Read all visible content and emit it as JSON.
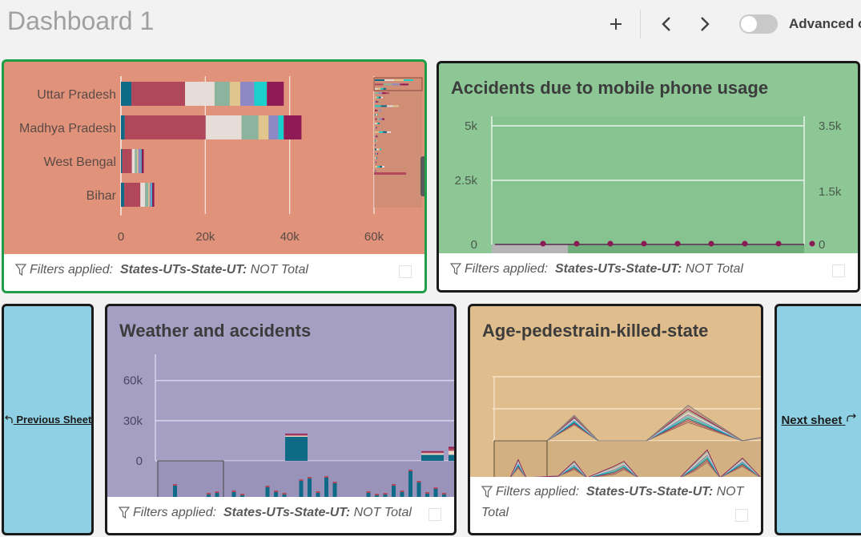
{
  "header": {
    "title": "Dashboard 1",
    "add_icon": "plus-icon",
    "prev_icon": "chevron-left-icon",
    "next_icon": "chevron-right-icon",
    "toggle_on": false,
    "advanced_label": "Advanced o"
  },
  "filter_footer": {
    "prefix": "Filters applied:",
    "field": "States-UTs-State-UT:",
    "value": "NOT Total"
  },
  "cards": {
    "states_bar": {
      "background": "#e0937a"
    },
    "mobile": {
      "title": "Accidents due to mobile phone usage",
      "background": "#8cc795"
    },
    "weather": {
      "title": "Weather and accidents",
      "background": "#a59fc4"
    },
    "age": {
      "title": "Age-pedestrain-killed-state",
      "background": "#e0bd8c"
    },
    "prev_sheet": {
      "label": "Previous Sheet",
      "icon": "return-arrow-icon"
    },
    "next_sheet": {
      "label": "Next sheet",
      "icon": "redo-arrow-icon"
    }
  },
  "chart_data": [
    {
      "type": "bar",
      "orientation": "horizontal-stacked",
      "categories": [
        "Uttar Pradesh",
        "Madhya Pradesh",
        "West Bengal",
        "Bihar"
      ],
      "segment_colors": [
        "#0e6a87",
        "#b0475a",
        "#e6ddd8",
        "#8bb39e",
        "#e0c58c",
        "#8c89c6",
        "#1bcfcc",
        "#8f1a56"
      ],
      "series_values": [
        [
          2500,
          12700,
          7000,
          3600,
          2500,
          3300,
          3000,
          4000
        ],
        [
          900,
          19200,
          8500,
          4000,
          2400,
          2300,
          1300,
          4200
        ],
        [
          300,
          2300,
          700,
          500,
          300,
          600,
          200,
          500
        ],
        [
          800,
          3800,
          1100,
          800,
          300,
          400,
          200,
          500
        ]
      ],
      "xticks": [
        "0",
        "20k",
        "40k",
        "60k"
      ],
      "xlim": [
        0,
        60000
      ]
    },
    {
      "type": "line",
      "title": "Accidents due to mobile phone usage",
      "yticks_left": [
        "5k",
        "2.5k",
        "0"
      ],
      "yticks_right": [
        "3.5k",
        "1.5k",
        "0"
      ],
      "ylim": [
        0,
        5000
      ],
      "points": 9,
      "values": [
        0,
        0,
        0,
        0,
        0,
        0,
        0,
        0,
        0
      ]
    },
    {
      "type": "bar",
      "title": "Weather and accidents",
      "yticks": [
        "60k",
        "30k",
        "0"
      ],
      "ylim": [
        0,
        60000
      ],
      "segment_colors": [
        "#0e6a87",
        "#e8dcc8",
        "#b0475a",
        "#8f1a56"
      ],
      "stacked_values": [
        [
          0,
          0,
          0,
          0
        ],
        [
          0,
          0,
          0,
          0
        ],
        [
          18000,
          800,
          800,
          700
        ],
        [
          0,
          0,
          0,
          0
        ],
        [
          0,
          0,
          0,
          0
        ],
        [
          0,
          0,
          0,
          0
        ],
        [
          0,
          0,
          0,
          0
        ],
        [
          4500,
          1200,
          1000,
          600
        ],
        [
          4500,
          3000,
          1800,
          1200
        ],
        [
          0,
          0,
          0,
          0
        ],
        [
          9000,
          2500,
          1500,
          1200
        ]
      ]
    },
    {
      "type": "line",
      "title": "Age-pedestrain-killed-state",
      "series_count": 10
    }
  ]
}
